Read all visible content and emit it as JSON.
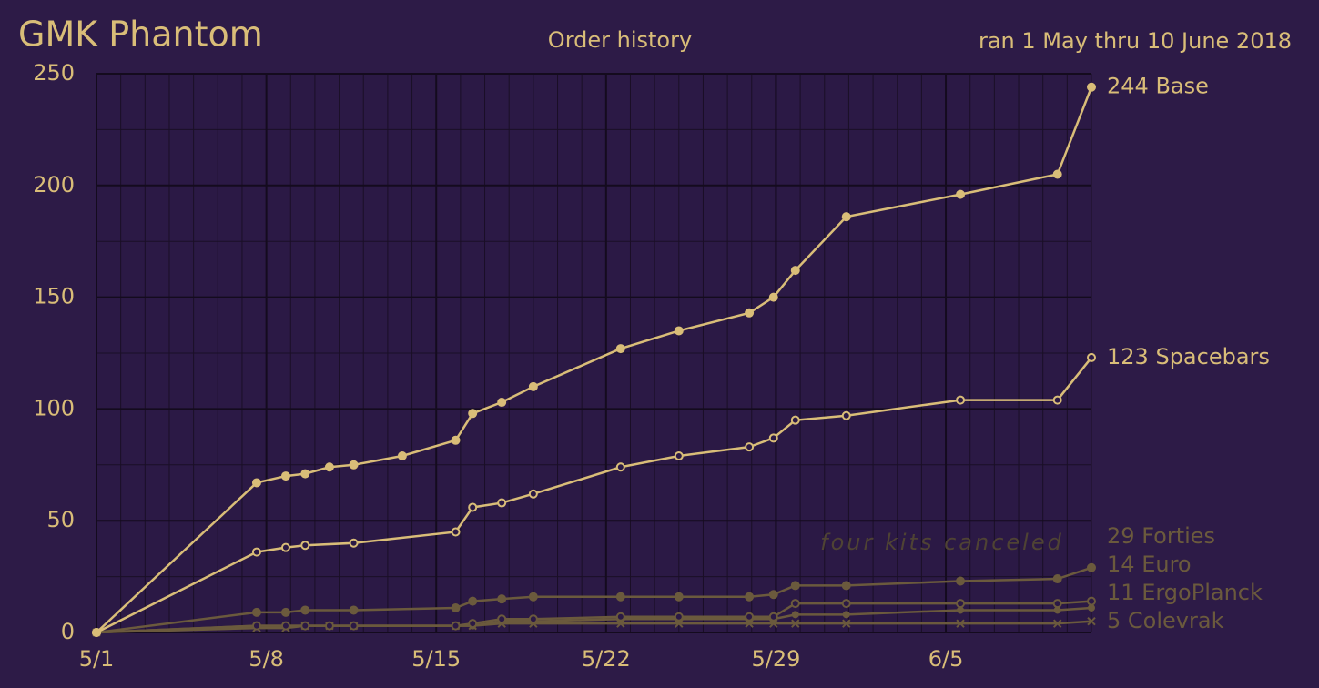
{
  "chart_data": {
    "type": "line",
    "title": "GMK Phantom",
    "subtitle": "Order history",
    "note": "ran 1 May thru 10 June 2018",
    "annotation": "four kits canceled",
    "xlim": [
      0,
      41
    ],
    "xticks": [
      {
        "value": 0,
        "label": "5/1"
      },
      {
        "value": 7,
        "label": "5/8"
      },
      {
        "value": 14,
        "label": "5/15"
      },
      {
        "value": 21,
        "label": "5/22"
      },
      {
        "value": 28,
        "label": "5/29"
      },
      {
        "value": 35,
        "label": "6/5"
      }
    ],
    "xticks_minor": [
      1,
      2,
      3,
      4,
      5,
      6,
      8,
      9,
      10,
      11,
      12,
      13,
      15,
      16,
      17,
      18,
      19,
      20,
      22,
      23,
      24,
      25,
      26,
      27,
      29,
      30,
      31,
      32,
      33,
      34,
      36,
      37,
      38,
      39,
      40,
      41
    ],
    "ylim": [
      0,
      250
    ],
    "yticks": [
      0,
      50,
      100,
      150,
      200,
      250
    ],
    "yticks_minor": [
      25,
      75,
      125,
      175,
      225
    ],
    "grid": true,
    "series": [
      {
        "name": "Base",
        "color": "#d9bd78",
        "marker": "dot",
        "x": [
          0,
          6.6,
          7.8,
          8.6,
          9.6,
          10.6,
          12.6,
          14.8,
          15.5,
          16.7,
          18,
          21.6,
          24,
          26.9,
          27.9,
          28.8,
          30.9,
          35.6,
          39.6,
          41
        ],
        "values": [
          0,
          67,
          70,
          71,
          74,
          75,
          79,
          86,
          98,
          103,
          110,
          127,
          135,
          143,
          150,
          162,
          186,
          196,
          205,
          244
        ]
      },
      {
        "name": "Spacebars",
        "color": "#d9bd78",
        "marker": "open",
        "x": [
          0,
          6.6,
          7.8,
          8.6,
          10.6,
          14.8,
          15.5,
          16.7,
          18,
          21.6,
          24,
          26.9,
          27.9,
          28.8,
          30.9,
          35.6,
          39.6,
          41
        ],
        "values": [
          0,
          36,
          38,
          39,
          40,
          45,
          56,
          58,
          62,
          74,
          79,
          83,
          87,
          95,
          97,
          104,
          104,
          123
        ]
      },
      {
        "name": "Forties",
        "color": "#6b5a3d",
        "marker": "dot",
        "x": [
          0,
          6.6,
          7.8,
          8.6,
          10.6,
          14.8,
          15.5,
          16.7,
          18,
          21.6,
          24,
          26.9,
          27.9,
          28.8,
          30.9,
          35.6,
          39.6,
          41
        ],
        "values": [
          0,
          9,
          9,
          10,
          10,
          11,
          14,
          15,
          16,
          16,
          16,
          16,
          17,
          21,
          21,
          23,
          24,
          29
        ]
      },
      {
        "name": "Euro",
        "color": "#6b5a3d",
        "marker": "open",
        "x": [
          0,
          6.6,
          7.8,
          8.6,
          9.6,
          10.6,
          14.8,
          15.5,
          16.7,
          18,
          21.6,
          24,
          26.9,
          27.9,
          28.8,
          30.9,
          35.6,
          39.6,
          41
        ],
        "values": [
          0,
          3,
          3,
          3,
          3,
          3,
          3,
          4,
          6,
          6,
          7,
          7,
          7,
          7,
          13,
          13,
          13,
          13,
          14
        ]
      },
      {
        "name": "ErgoPlanck",
        "color": "#6b5a3d",
        "marker": "small",
        "x": [
          0,
          6.6,
          7.8,
          8.6,
          9.6,
          10.6,
          14.8,
          15.5,
          16.7,
          18,
          21.6,
          24,
          26.9,
          27.9,
          28.8,
          30.9,
          35.6,
          39.6,
          41
        ],
        "values": [
          0,
          3,
          3,
          3,
          3,
          3,
          3,
          3,
          5,
          5,
          6,
          6,
          6,
          6,
          8,
          8,
          10,
          10,
          11
        ]
      },
      {
        "name": "Colevrak",
        "color": "#6b5a3d",
        "marker": "x",
        "x": [
          0,
          6.6,
          7.8,
          8.6,
          9.6,
          10.6,
          14.8,
          15.5,
          16.7,
          18,
          21.6,
          24,
          26.9,
          27.9,
          28.8,
          30.9,
          35.6,
          39.6,
          41
        ],
        "values": [
          0,
          2,
          2,
          3,
          3,
          3,
          3,
          3,
          4,
          4,
          4,
          4,
          4,
          4,
          4,
          4,
          4,
          4,
          5
        ]
      }
    ]
  }
}
